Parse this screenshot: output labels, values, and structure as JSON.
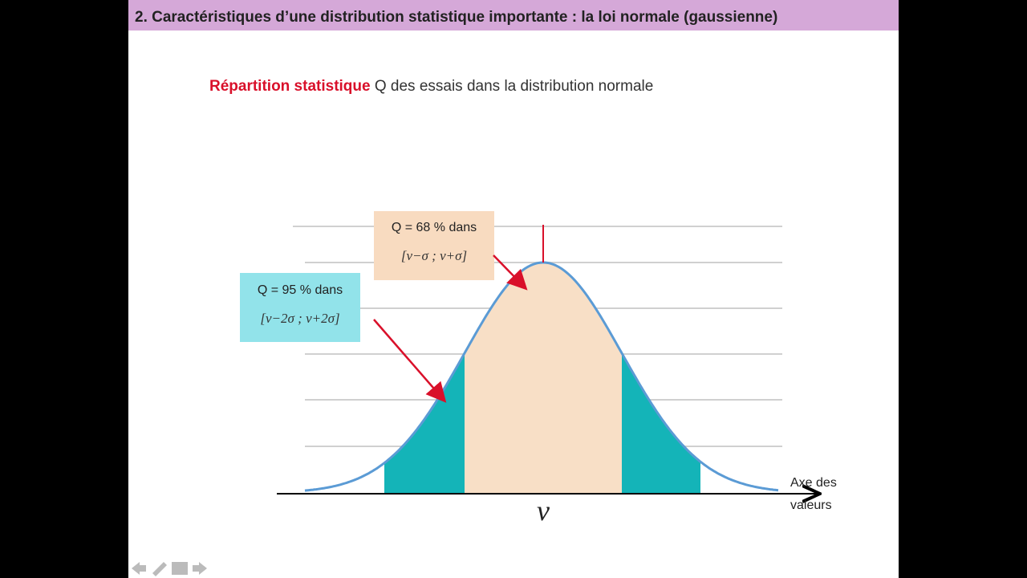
{
  "header": {
    "title": "2. Caractéristiques d’une distribution statistique importante : la loi normale (gaussienne)"
  },
  "subtitle": {
    "highlight": "Répartition statistique",
    "rest": "Q des essais dans la distribution normale"
  },
  "callouts": [
    {
      "line1": "Q = 68 % dans",
      "line2": "[v−σ ; v+σ]"
    },
    {
      "line1": "Q = 95 % dans",
      "line2": "[v−2σ ; v+2σ]"
    }
  ],
  "axis": {
    "label_line1": "Axe des",
    "label_line2": "valeurs",
    "mean": "ν"
  }
}
